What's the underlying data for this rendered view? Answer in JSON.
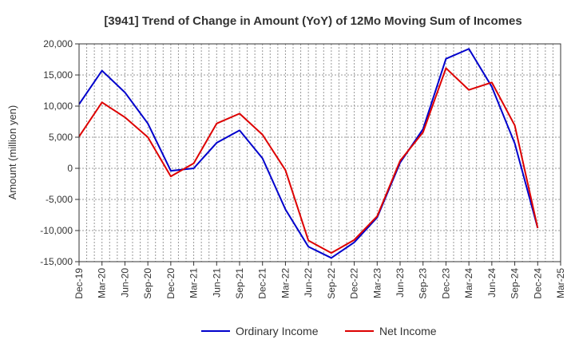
{
  "chart_data": {
    "type": "line",
    "title": "[3941]  Trend of Change in Amount (YoY) of 12Mo Moving Sum of Incomes",
    "xlabel": "",
    "ylabel": "Amount (million yen)",
    "ylim": [
      -15000,
      20000
    ],
    "yticks": [
      20000,
      15000,
      10000,
      5000,
      0,
      -5000,
      -10000,
      -15000
    ],
    "ytick_labels": [
      "20,000",
      "15,000",
      "10,000",
      "5,000",
      "0",
      "-5,000",
      "-10,000",
      "-15,000"
    ],
    "grid": true,
    "legend_position": "bottom-center",
    "categories": [
      "Dec-19",
      "Mar-20",
      "Jun-20",
      "Sep-20",
      "Dec-20",
      "Mar-21",
      "Jun-21",
      "Sep-21",
      "Dec-21",
      "Mar-22",
      "Jun-22",
      "Sep-22",
      "Dec-22",
      "Mar-23",
      "Jun-23",
      "Sep-23",
      "Dec-23",
      "Mar-24",
      "Jun-24",
      "Sep-24",
      "Dec-24",
      "Mar-25"
    ],
    "series": [
      {
        "name": "Ordinary Income",
        "color": "#0000cc",
        "values": [
          10300,
          15700,
          12200,
          7200,
          -400,
          0,
          4100,
          6100,
          1600,
          -6600,
          -12600,
          -14400,
          -11900,
          -7900,
          900,
          6300,
          17600,
          19200,
          13100,
          4000,
          -9600,
          null
        ]
      },
      {
        "name": "Net Income",
        "color": "#dd0000",
        "values": [
          5100,
          10600,
          8200,
          5000,
          -1300,
          800,
          7200,
          8800,
          5400,
          -300,
          -11600,
          -13600,
          -11500,
          -7700,
          1200,
          5800,
          16100,
          12600,
          13800,
          6900,
          -9600,
          null
        ]
      }
    ]
  }
}
